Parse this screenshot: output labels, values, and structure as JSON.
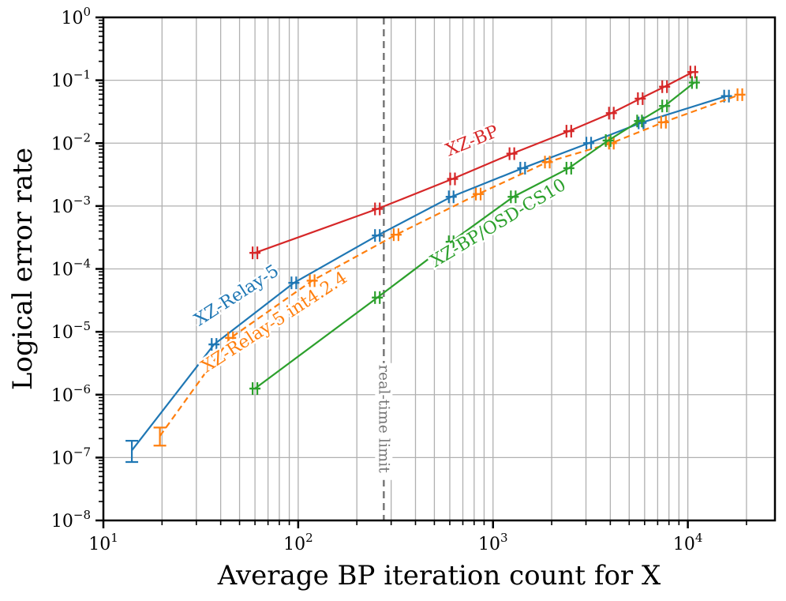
{
  "chart_data": {
    "type": "line",
    "title": "",
    "xlabel": "Average BP iteration count for X",
    "ylabel": "Logical error rate",
    "xscale": "log",
    "yscale": "log",
    "xlim": [
      10,
      28000
    ],
    "ylim": [
      1e-08,
      1
    ],
    "grid": true,
    "x_ticks": [
      {
        "value": 10,
        "base": "10",
        "exp": "1"
      },
      {
        "value": 100,
        "base": "10",
        "exp": "2"
      },
      {
        "value": 1000,
        "base": "10",
        "exp": "3"
      },
      {
        "value": 10000,
        "base": "10",
        "exp": "4"
      }
    ],
    "y_ticks": [
      {
        "value": 1,
        "base": "10",
        "exp": "0"
      },
      {
        "value": 0.1,
        "base": "10",
        "exp": "−1"
      },
      {
        "value": 0.01,
        "base": "10",
        "exp": "−2"
      },
      {
        "value": 0.001,
        "base": "10",
        "exp": "−3"
      },
      {
        "value": 0.0001,
        "base": "10",
        "exp": "−4"
      },
      {
        "value": 1e-05,
        "base": "10",
        "exp": "−5"
      },
      {
        "value": 1e-06,
        "base": "10",
        "exp": "−6"
      },
      {
        "value": 1e-07,
        "base": "10",
        "exp": "−7"
      },
      {
        "value": 1e-08,
        "base": "10",
        "exp": "−8"
      }
    ],
    "series": [
      {
        "name": "XZ-BP",
        "color": "#d62728",
        "dashed": false,
        "label_pos": {
          "x": 800,
          "y": 0.009
        },
        "label_angle": -22,
        "points": [
          {
            "x": 60,
            "y": 0.00018
          },
          {
            "x": 255,
            "y": 0.0009
          },
          {
            "x": 620,
            "y": 0.0027
          },
          {
            "x": 1250,
            "y": 0.0068
          },
          {
            "x": 2450,
            "y": 0.0155
          },
          {
            "x": 4050,
            "y": 0.03
          },
          {
            "x": 5700,
            "y": 0.051
          },
          {
            "x": 7600,
            "y": 0.079
          },
          {
            "x": 10600,
            "y": 0.135
          }
        ]
      },
      {
        "name": "XZ-Relay-5",
        "color": "#1f77b4",
        "dashed": false,
        "label_pos": {
          "x": 50,
          "y": 3.2e-05
        },
        "label_angle": -33,
        "points": [
          {
            "x": 14,
            "y": 1.3e-07,
            "yerr": [
              8.5e-08,
              1.85e-07
            ]
          },
          {
            "x": 37,
            "y": 6.3e-06
          },
          {
            "x": 95,
            "y": 6e-05
          },
          {
            "x": 255,
            "y": 0.00034
          },
          {
            "x": 610,
            "y": 0.0014
          },
          {
            "x": 1420,
            "y": 0.004
          },
          {
            "x": 3100,
            "y": 0.01
          },
          {
            "x": 5750,
            "y": 0.021
          },
          {
            "x": 15800,
            "y": 0.056
          }
        ]
      },
      {
        "name": "XZ-Relay-5 int4.2.4",
        "color": "#ff7f0e",
        "dashed": true,
        "label_pos": {
          "x": 78,
          "y": 1.2e-05
        },
        "label_angle": -33,
        "points": [
          {
            "x": 19.5,
            "y": 2.2e-07,
            "yerr": [
              1.55e-07,
              3e-07
            ]
          },
          {
            "x": 45,
            "y": 8e-06
          },
          {
            "x": 118,
            "y": 6.5e-05
          },
          {
            "x": 318,
            "y": 0.00035
          },
          {
            "x": 840,
            "y": 0.00155
          },
          {
            "x": 1900,
            "y": 0.005
          },
          {
            "x": 4050,
            "y": 0.01
          },
          {
            "x": 7500,
            "y": 0.0215
          },
          {
            "x": 18500,
            "y": 0.059
          }
        ]
      },
      {
        "name": "XZ-BP/OSD-CS10",
        "color": "#2ca02c",
        "dashed": false,
        "label_pos": {
          "x": 1100,
          "y": 0.00045
        },
        "label_angle": -31,
        "points": [
          {
            "x": 60,
            "y": 1.25e-06
          },
          {
            "x": 255,
            "y": 3.5e-05
          },
          {
            "x": 610,
            "y": 0.00027
          },
          {
            "x": 1270,
            "y": 0.0014
          },
          {
            "x": 2450,
            "y": 0.004
          },
          {
            "x": 3900,
            "y": 0.011
          },
          {
            "x": 5650,
            "y": 0.0225
          },
          {
            "x": 7600,
            "y": 0.039
          },
          {
            "x": 10800,
            "y": 0.092
          }
        ]
      }
    ],
    "annotations": [
      {
        "text": "real-time limit",
        "x": 275,
        "label_y": 3e-06,
        "color": "#777777",
        "style": "dashed vertical line"
      }
    ]
  }
}
